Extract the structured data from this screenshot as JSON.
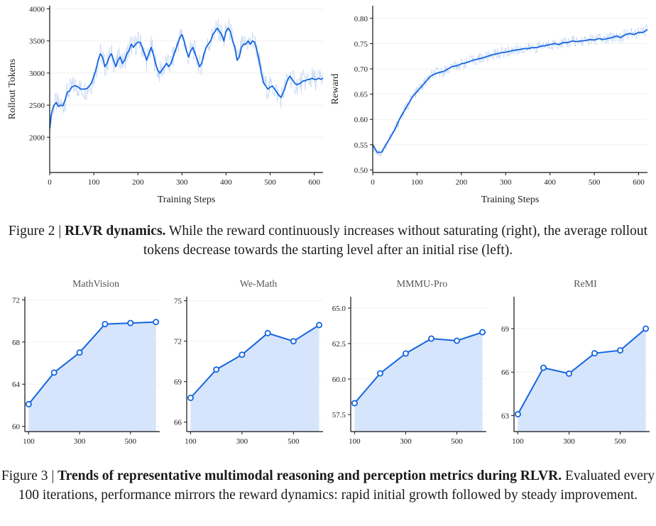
{
  "figure2": {
    "caption_prefix": "Figure 2 | ",
    "caption_bold": "RLVR dynamics.",
    "caption_rest": " While the reward continuously increases without saturating (right), the average rollout tokens decrease towards the starting level after an initial rise (left)."
  },
  "figure3": {
    "caption_prefix": "Figure 3 | ",
    "caption_bold": "Trends of representative multimodal reasoning and perception metrics during RLVR.",
    "caption_rest": " Evaluated every 100 iterations, performance mirrors the reward dynamics: rapid initial growth followed by steady improvement."
  },
  "colors": {
    "line": "#1565e0",
    "raw": "#b7cff2",
    "fill": "#d6e5fb"
  },
  "chart_data": [
    {
      "type": "line",
      "title": "",
      "xlabel": "Training Steps",
      "ylabel": "Rollout Tokens",
      "xlim": [
        0,
        620
      ],
      "ylim": [
        1450,
        4050
      ],
      "xticks": [
        0,
        100,
        200,
        300,
        400,
        500,
        600
      ],
      "yticks": [
        2000,
        2500,
        3000,
        3500,
        4000
      ],
      "grid": true,
      "series": [
        {
          "x": [
            0,
            5,
            10,
            15,
            20,
            25,
            30,
            35,
            40,
            45,
            50,
            55,
            60,
            65,
            70,
            75,
            80,
            85,
            90,
            95,
            100,
            105,
            110,
            115,
            120,
            125,
            130,
            135,
            140,
            145,
            150,
            155,
            160,
            165,
            170,
            175,
            180,
            185,
            190,
            195,
            200,
            205,
            210,
            215,
            220,
            225,
            230,
            235,
            240,
            245,
            250,
            255,
            260,
            265,
            270,
            275,
            280,
            285,
            290,
            295,
            300,
            305,
            310,
            315,
            320,
            325,
            330,
            335,
            340,
            345,
            350,
            355,
            360,
            365,
            370,
            375,
            380,
            385,
            390,
            395,
            400,
            405,
            410,
            415,
            420,
            425,
            430,
            435,
            440,
            445,
            450,
            455,
            460,
            465,
            470,
            475,
            480,
            485,
            490,
            495,
            500,
            505,
            510,
            515,
            520,
            525,
            530,
            535,
            540,
            545,
            550,
            555,
            560,
            565,
            570,
            575,
            580,
            585,
            590,
            595,
            600,
            605,
            610,
            615,
            620
          ],
          "y": [
            2150,
            2400,
            2500,
            2540,
            2480,
            2500,
            2490,
            2580,
            2700,
            2720,
            2780,
            2800,
            2800,
            2780,
            2750,
            2750,
            2750,
            2760,
            2800,
            2850,
            2950,
            3050,
            3200,
            3300,
            3250,
            3100,
            3150,
            3250,
            3300,
            3200,
            3100,
            3200,
            3250,
            3150,
            3200,
            3300,
            3350,
            3450,
            3400,
            3450,
            3480,
            3480,
            3400,
            3300,
            3200,
            3300,
            3400,
            3300,
            3150,
            3050,
            3000,
            3050,
            3100,
            3150,
            3100,
            3150,
            3250,
            3350,
            3450,
            3550,
            3600,
            3500,
            3350,
            3250,
            3350,
            3400,
            3300,
            3200,
            3100,
            3150,
            3300,
            3400,
            3450,
            3500,
            3600,
            3650,
            3700,
            3650,
            3600,
            3500,
            3650,
            3700,
            3650,
            3500,
            3400,
            3200,
            3250,
            3400,
            3450,
            3450,
            3500,
            3450,
            3500,
            3480,
            3350,
            3200,
            3000,
            2850,
            2800,
            2750,
            2780,
            2800,
            2750,
            2700,
            2650,
            2620,
            2700,
            2800,
            2900,
            2950,
            2900,
            2850,
            2820,
            2830,
            2850,
            2880,
            2880,
            2900,
            2900,
            2920,
            2900,
            2900,
            2920,
            2900,
            2920
          ]
        }
      ]
    },
    {
      "type": "line",
      "title": "",
      "xlabel": "Training Steps",
      "ylabel": "Reward",
      "xlim": [
        0,
        620
      ],
      "ylim": [
        0.495,
        0.825
      ],
      "xticks": [
        0,
        100,
        200,
        300,
        400,
        500,
        600
      ],
      "yticks": [
        0.5,
        0.55,
        0.6,
        0.65,
        0.7,
        0.75,
        0.8
      ],
      "grid": true,
      "series": [
        {
          "x": [
            0,
            10,
            20,
            30,
            40,
            50,
            60,
            70,
            80,
            90,
            100,
            110,
            120,
            130,
            140,
            150,
            160,
            170,
            180,
            190,
            200,
            210,
            220,
            230,
            240,
            250,
            260,
            270,
            280,
            290,
            300,
            310,
            320,
            330,
            340,
            350,
            360,
            370,
            380,
            390,
            400,
            410,
            420,
            430,
            440,
            450,
            460,
            470,
            480,
            490,
            500,
            510,
            520,
            530,
            540,
            550,
            560,
            570,
            580,
            590,
            600,
            610,
            620
          ],
          "y": [
            0.55,
            0.535,
            0.535,
            0.55,
            0.565,
            0.58,
            0.6,
            0.615,
            0.63,
            0.645,
            0.655,
            0.665,
            0.675,
            0.685,
            0.69,
            0.693,
            0.695,
            0.7,
            0.705,
            0.706,
            0.71,
            0.712,
            0.715,
            0.718,
            0.72,
            0.722,
            0.725,
            0.728,
            0.73,
            0.732,
            0.733,
            0.735,
            0.737,
            0.738,
            0.74,
            0.74,
            0.742,
            0.742,
            0.745,
            0.746,
            0.748,
            0.75,
            0.748,
            0.752,
            0.752,
            0.755,
            0.754,
            0.755,
            0.756,
            0.758,
            0.757,
            0.76,
            0.758,
            0.76,
            0.762,
            0.765,
            0.762,
            0.768,
            0.77,
            0.768,
            0.772,
            0.772,
            0.778
          ]
        }
      ]
    },
    {
      "type": "area",
      "title": "MathVision",
      "xlim": [
        85,
        615
      ],
      "ylim": [
        59.5,
        72.3
      ],
      "xticks": [
        100,
        300,
        500
      ],
      "yticks": [
        60,
        64,
        68,
        72
      ],
      "series": [
        {
          "x": [
            100,
            200,
            300,
            400,
            500,
            600
          ],
          "y": [
            62.1,
            65.1,
            67.0,
            69.7,
            69.8,
            69.9
          ]
        }
      ]
    },
    {
      "type": "area",
      "title": "We-Math",
      "xlim": [
        85,
        615
      ],
      "ylim": [
        65.3,
        75.3
      ],
      "xticks": [
        100,
        300,
        500
      ],
      "yticks": [
        66,
        69,
        72,
        75
      ],
      "series": [
        {
          "x": [
            100,
            200,
            300,
            400,
            500,
            600
          ],
          "y": [
            67.8,
            69.9,
            71.0,
            72.6,
            72.0,
            73.2
          ]
        }
      ]
    },
    {
      "type": "area",
      "title": "MMMU-Pro",
      "xlim": [
        85,
        615
      ],
      "ylim": [
        56.3,
        65.8
      ],
      "xticks": [
        100,
        300,
        500
      ],
      "yticks": [
        57.5,
        60.0,
        62.5,
        65.0
      ],
      "series": [
        {
          "x": [
            100,
            200,
            300,
            400,
            500,
            600
          ],
          "y": [
            58.3,
            60.4,
            61.8,
            62.85,
            62.7,
            63.3
          ]
        }
      ]
    },
    {
      "type": "area",
      "title": "ReMI",
      "xlim": [
        85,
        615
      ],
      "ylim": [
        61.9,
        71.2
      ],
      "xticks": [
        100,
        300,
        500
      ],
      "yticks": [
        63,
        66,
        69
      ],
      "series": [
        {
          "x": [
            100,
            200,
            300,
            400,
            500,
            600
          ],
          "y": [
            63.1,
            66.3,
            65.9,
            67.3,
            67.5,
            69.0
          ]
        }
      ]
    }
  ]
}
